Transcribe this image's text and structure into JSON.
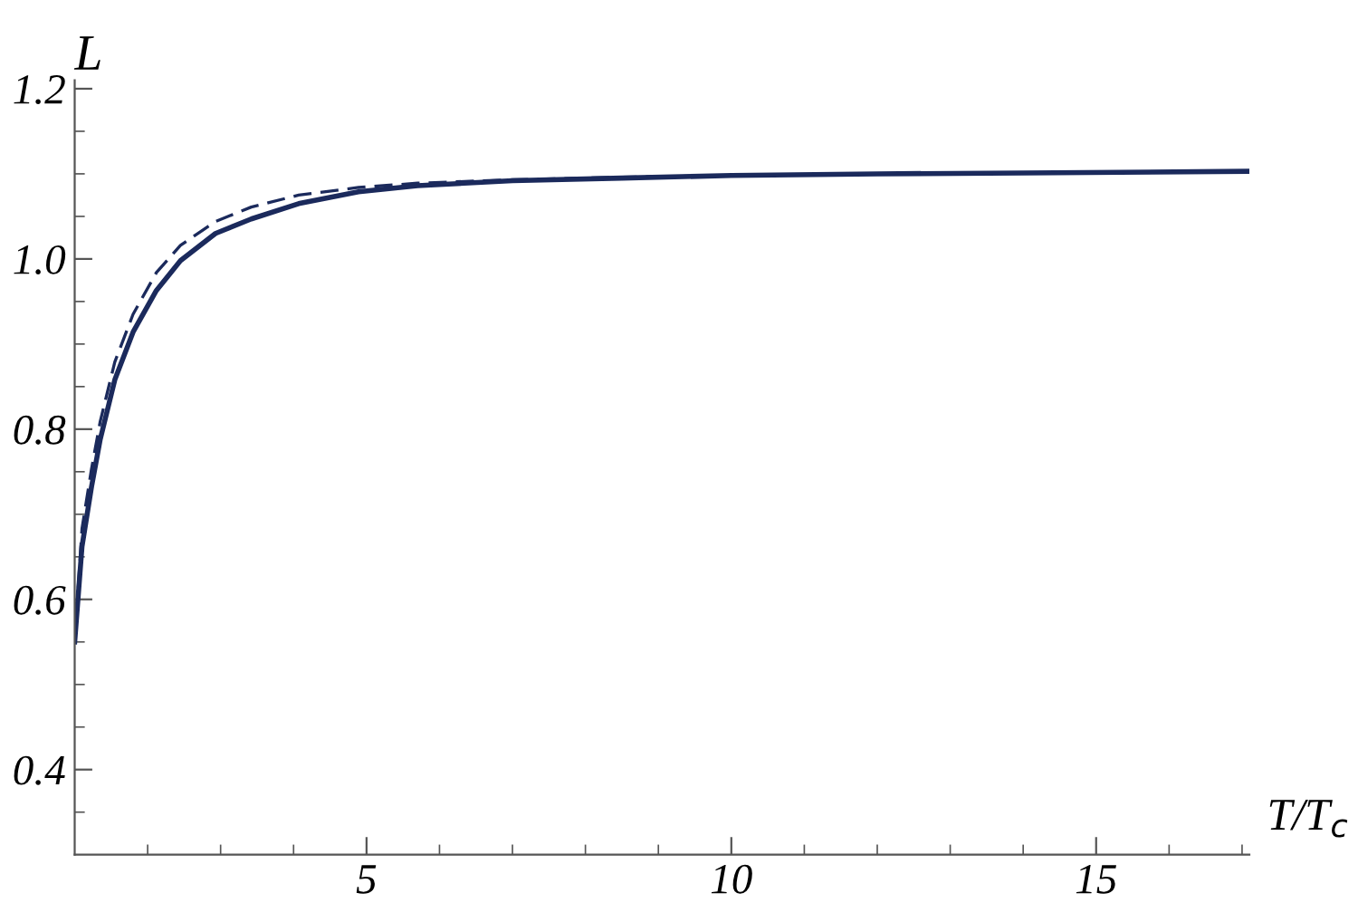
{
  "chart_data": {
    "type": "line",
    "ylabel": "L",
    "xlabel": "T/T$_{c}$",
    "xlim": [
      1,
      17.1
    ],
    "ylim": [
      0.3,
      1.21
    ],
    "xticks": [
      {
        "value": 2,
        "label": null
      },
      {
        "value": 3,
        "label": null
      },
      {
        "value": 4,
        "label": null
      },
      5,
      {
        "value": 6,
        "label": null
      },
      {
        "value": 7,
        "label": null
      },
      {
        "value": 8,
        "label": null
      },
      {
        "value": 9,
        "label": null
      },
      10,
      {
        "value": 11,
        "label": null
      },
      {
        "value": 12,
        "label": null
      },
      {
        "value": 13,
        "label": null
      },
      {
        "value": 14,
        "label": null
      },
      15,
      {
        "value": 16,
        "label": null
      },
      {
        "value": 17,
        "label": null
      }
    ],
    "yticks": [
      {
        "value": 0.35,
        "label": null
      },
      {
        "value": 0.4,
        "label": "0.4"
      },
      {
        "value": 0.45,
        "label": null
      },
      {
        "value": 0.5,
        "label": null
      },
      {
        "value": 0.55,
        "label": null
      },
      {
        "value": 0.6,
        "label": "0.6"
      },
      {
        "value": 0.65,
        "label": null
      },
      {
        "value": 0.7,
        "label": null
      },
      {
        "value": 0.75,
        "label": null
      },
      {
        "value": 0.8,
        "label": "0.8"
      },
      {
        "value": 0.85,
        "label": null
      },
      {
        "value": 0.9,
        "label": null
      },
      {
        "value": 0.95,
        "label": null
      },
      {
        "value": 1.0,
        "label": "1.0"
      },
      {
        "value": 1.05,
        "label": null
      },
      {
        "value": 1.1,
        "label": null
      },
      {
        "value": 1.15,
        "label": null
      },
      {
        "value": 1.2,
        "label": "1.2"
      }
    ],
    "grid": false,
    "legend": false,
    "series": [
      {
        "color": "#1b2a5c",
        "line_style": "dashed",
        "x": [
          1,
          1.1,
          1.23,
          1.35,
          1.55,
          1.8,
          2.12,
          2.45,
          2.93,
          3.42,
          4.07,
          4.89,
          5.7,
          7,
          8.5,
          10,
          12,
          14,
          17.1
        ],
        "values": [
          0.55,
          0.683,
          0.753,
          0.809,
          0.879,
          0.935,
          0.984,
          1.016,
          1.044,
          1.061,
          1.075,
          1.084,
          1.089,
          1.093,
          1.096,
          1.098,
          1.1,
          1.101,
          1.103
        ]
      },
      {
        "color": "#1b2a5c",
        "line_style": "solid",
        "x": [
          1,
          1.1,
          1.23,
          1.35,
          1.55,
          1.8,
          2.12,
          2.45,
          2.93,
          3.42,
          4.07,
          4.89,
          5.7,
          7,
          8.5,
          10,
          12,
          14,
          17.1
        ],
        "values": [
          0.55,
          0.662,
          0.732,
          0.788,
          0.858,
          0.914,
          0.963,
          0.998,
          1.03,
          1.047,
          1.065,
          1.079,
          1.086,
          1.092,
          1.095,
          1.098,
          1.1,
          1.101,
          1.103
        ]
      }
    ]
  }
}
